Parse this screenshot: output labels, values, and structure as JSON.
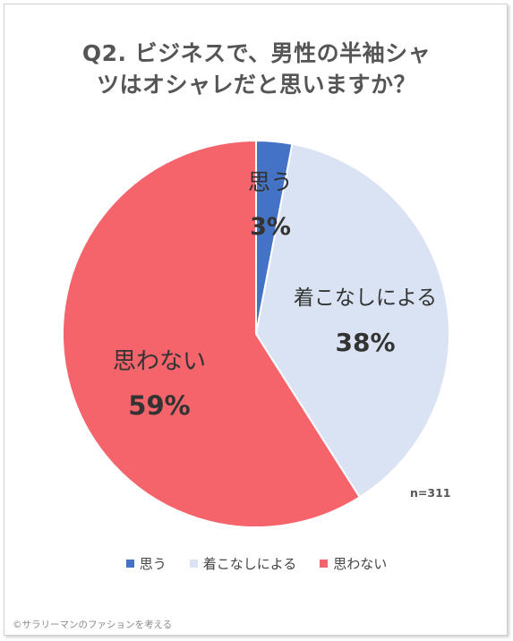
{
  "title_lines": [
    "Q2. ビジネスで、男性の半袖シャ",
    "ツはオシャレだと思いますか？"
  ],
  "sample_note": "n=311",
  "copyright": "©サラリーマンのファションを考える",
  "chart_data": {
    "type": "pie",
    "title": "Q2. ビジネスで、男性の半袖シャツはオシャレだと思いますか？",
    "slices": [
      {
        "label": "思う",
        "value": 3,
        "display": "3%",
        "color": "#4472C4"
      },
      {
        "label": "着こなしによる",
        "value": 38,
        "display": "38%",
        "color": "#DAE3F3"
      },
      {
        "label": "思わない",
        "value": 59,
        "display": "59%",
        "color": "#F4646A"
      }
    ],
    "legend": [
      "思う",
      "着こなしによる",
      "思わない"
    ],
    "legend_position": "bottom"
  }
}
